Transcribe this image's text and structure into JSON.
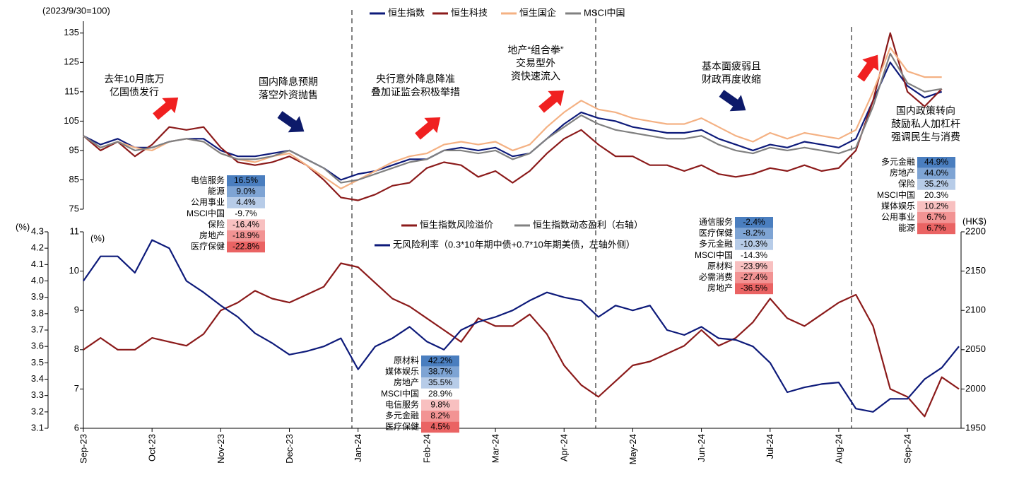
{
  "chart_data": [
    {
      "type": "line",
      "ylabel": "(2023/9/30=100)",
      "categories": [
        "Sep-23",
        null,
        null,
        null,
        "Oct-23",
        null,
        null,
        null,
        "Nov-23",
        null,
        null,
        null,
        "Dec-23",
        null,
        null,
        null,
        "Jan-24",
        null,
        null,
        null,
        "Feb-24",
        null,
        null,
        null,
        "Mar-24",
        null,
        null,
        null,
        "Apr-24",
        null,
        null,
        null,
        "May-24",
        null,
        null,
        null,
        "Jun-24",
        null,
        null,
        null,
        "Jul-24",
        null,
        null,
        null,
        "Aug-24",
        null,
        null,
        null,
        "Sep-24",
        null,
        null,
        null
      ],
      "ylim": [
        75,
        140
      ],
      "yticks": [
        75,
        85,
        95,
        105,
        115,
        125,
        135
      ],
      "series": [
        {
          "name": "恒生指数",
          "color": "#0d1a7a",
          "values": [
            100,
            97,
            99,
            96,
            96,
            98,
            99,
            99,
            95,
            93,
            93,
            94,
            95,
            92,
            89,
            85,
            87,
            88,
            90,
            92,
            92,
            95,
            96,
            95,
            96,
            93,
            94,
            99,
            104,
            108,
            106,
            105,
            103,
            102,
            101,
            101,
            102,
            99,
            97,
            95,
            97,
            96,
            98,
            97,
            96,
            99,
            112,
            125,
            117,
            113,
            115,
            null
          ]
        },
        {
          "name": "恒生科技",
          "color": "#8b1a1a",
          "values": [
            100,
            95,
            98,
            93,
            97,
            103,
            102,
            103,
            96,
            91,
            90,
            91,
            93,
            90,
            85,
            79,
            78,
            80,
            83,
            84,
            89,
            91,
            90,
            86,
            88,
            84,
            88,
            94,
            99,
            102,
            97,
            93,
            93,
            90,
            90,
            88,
            90,
            87,
            86,
            87,
            89,
            88,
            90,
            88,
            89,
            95,
            112,
            135,
            115,
            110,
            116,
            null
          ]
        },
        {
          "name": "恒生国企",
          "color": "#f4b183",
          "values": [
            100,
            96,
            98,
            96,
            95,
            98,
            99,
            98,
            94,
            92,
            91,
            93,
            94,
            90,
            86,
            82,
            85,
            88,
            91,
            93,
            94,
            97,
            98,
            97,
            98,
            95,
            97,
            103,
            108,
            112,
            109,
            108,
            106,
            105,
            104,
            104,
            106,
            103,
            100,
            98,
            101,
            99,
            101,
            100,
            99,
            102,
            115,
            130,
            122,
            120,
            120,
            null
          ]
        },
        {
          "name": "MSCI中国",
          "color": "#808080",
          "values": [
            100,
            96,
            98,
            95,
            96,
            98,
            99,
            98,
            94,
            92,
            92,
            93,
            95,
            92,
            89,
            84,
            85,
            87,
            89,
            91,
            92,
            95,
            95,
            94,
            95,
            92,
            94,
            99,
            103,
            107,
            104,
            102,
            101,
            100,
            99,
            99,
            100,
            97,
            95,
            94,
            96,
            95,
            96,
            95,
            94,
            96,
            110,
            128,
            118,
            115,
            116,
            null
          ]
        }
      ],
      "annotations": [
        [
          "去年10月底万",
          "亿国债发行"
        ],
        [
          "国内降息预期",
          "落空外资抛售"
        ],
        [
          "央行意外降息降准",
          "叠加证监会积极举措"
        ],
        [
          "地产“组合拳”",
          "交易型外",
          "资快速流入"
        ],
        [
          "基本面疲弱且",
          "财政再度收缩"
        ],
        [
          "国内政策转向",
          "鼓励私人加杠杆",
          "强调民生与消费"
        ]
      ]
    },
    {
      "type": "line",
      "ylabel": "(%)",
      "y3label": "(%)",
      "y2label": "(HK$)",
      "categories": [
        "Sep-23",
        null,
        null,
        null,
        "Oct-23",
        null,
        null,
        null,
        "Nov-23",
        null,
        null,
        null,
        "Dec-23",
        null,
        null,
        null,
        "Jan-24",
        null,
        null,
        null,
        "Feb-24",
        null,
        null,
        null,
        "Mar-24",
        null,
        null,
        null,
        "Apr-24",
        null,
        null,
        null,
        "May-24",
        null,
        null,
        null,
        "Jun-24",
        null,
        null,
        null,
        "Jul-24",
        null,
        null,
        null,
        "Aug-24",
        null,
        null,
        null,
        "Sep-24",
        null,
        null,
        null
      ],
      "ylim": [
        6,
        11
      ],
      "yticks": [
        6,
        7,
        8,
        9,
        10,
        11
      ],
      "y3lim": [
        3.1,
        4.3
      ],
      "y3ticks": [
        3.1,
        3.2,
        3.3,
        3.4,
        3.5,
        3.6,
        3.7,
        3.8,
        3.9,
        {
          "value": 4,
          "label": "4.0"
        },
        4.1,
        4.2,
        4.3
      ],
      "y2lim": [
        1950,
        2200
      ],
      "y2ticks": [
        1950,
        2000,
        2050,
        2100,
        2150,
        2200
      ],
      "series": [
        {
          "name": "恒生指数风险溢价",
          "color": "#8b1a1a",
          "axis": "y",
          "values": [
            8.0,
            8.3,
            8.0,
            8.0,
            8.3,
            8.2,
            8.1,
            8.4,
            9.0,
            9.2,
            9.5,
            9.3,
            9.2,
            9.4,
            9.6,
            10.2,
            10.1,
            9.7,
            9.3,
            9.1,
            8.8,
            8.5,
            8.2,
            8.8,
            8.6,
            8.6,
            8.9,
            8.4,
            7.6,
            7.1,
            6.8,
            7.2,
            7.6,
            7.7,
            7.9,
            8.1,
            8.5,
            8.1,
            8.3,
            8.7,
            9.3,
            8.8,
            8.6,
            8.9,
            9.2,
            9.4,
            8.6,
            7.0,
            6.8,
            6.3,
            7.3,
            7.0
          ]
        },
        {
          "name": "恒生指数动态盈利（右轴）",
          "color": "#808080",
          "axis": "y2",
          "values": [
            null,
            null,
            null,
            null,
            null,
            null,
            null,
            null,
            null,
            null,
            null,
            null,
            null,
            null,
            null,
            null,
            null,
            null,
            null,
            null,
            null,
            null,
            null,
            null,
            null,
            null,
            null,
            null,
            null,
            null,
            null,
            null,
            null,
            null,
            null,
            null,
            null,
            null,
            null,
            null,
            null,
            null,
            null,
            null,
            null,
            null,
            null,
            null,
            null,
            null,
            null,
            null
          ]
        },
        {
          "name": "无风险利率（0.3*10年期中债+0.7*10年期美债，左轴外侧）",
          "color": "#0d1a7a",
          "axis": "y3",
          "values": [
            4.0,
            4.15,
            4.15,
            4.05,
            4.25,
            4.2,
            4.0,
            3.93,
            3.85,
            3.78,
            3.68,
            3.62,
            3.55,
            3.57,
            3.6,
            3.65,
            3.46,
            3.6,
            3.65,
            3.72,
            3.63,
            3.58,
            3.7,
            3.75,
            3.78,
            3.82,
            3.88,
            3.93,
            3.9,
            3.88,
            3.78,
            3.85,
            3.82,
            3.85,
            3.7,
            3.67,
            3.72,
            3.65,
            3.64,
            3.6,
            3.5,
            3.32,
            3.35,
            3.37,
            3.38,
            3.22,
            3.2,
            3.28,
            3.28,
            3.4,
            3.47,
            3.6
          ]
        }
      ]
    }
  ],
  "tables": [
    {
      "names": [
        "电信服务",
        "能源",
        "公用事业",
        "MSCI中国",
        "保险",
        "房地产",
        "医疗保健"
      ],
      "values": [
        16.5,
        9.0,
        4.4,
        -9.7,
        -16.4,
        -18.9,
        -22.8
      ],
      "value_labels": [
        "16.5%",
        "9.0%",
        "4.4%",
        "-9.7%",
        "-16.4%",
        "-18.9%",
        "-22.8%"
      ]
    },
    {
      "names": [
        "通信服务",
        "医疗保健",
        "多元金融",
        "MSCI中国",
        "原材料",
        "必需消费",
        "房地产"
      ],
      "values": [
        -2.4,
        -8.2,
        -10.3,
        -14.3,
        -23.9,
        -27.4,
        -36.5
      ],
      "value_labels": [
        "-2.4%",
        "-8.2%",
        "-10.3%",
        "-14.3%",
        "-23.9%",
        "-27.4%",
        "-36.5%"
      ]
    },
    {
      "names": [
        "多元金融",
        "房地产",
        "保险",
        "MSCI中国",
        "媒体娱乐",
        "公用事业",
        "能源"
      ],
      "values": [
        44.9,
        44.0,
        35.2,
        20.3,
        10.2,
        6.7,
        6.7
      ],
      "value_labels": [
        "44.9%",
        "44.0%",
        "35.2%",
        "20.3%",
        "10.2%",
        "6.7%",
        "6.7%"
      ]
    },
    {
      "names": [
        "原材料",
        "媒体娱乐",
        "房地产",
        "MSCI中国",
        "电信服务",
        "多元金融",
        "医疗保健"
      ],
      "values": [
        42.2,
        38.7,
        35.5,
        28.9,
        9.8,
        8.2,
        4.5
      ],
      "value_labels": [
        "42.2%",
        "38.7%",
        "35.5%",
        "28.9%",
        "9.8%",
        "8.2%",
        "4.5%"
      ]
    }
  ]
}
